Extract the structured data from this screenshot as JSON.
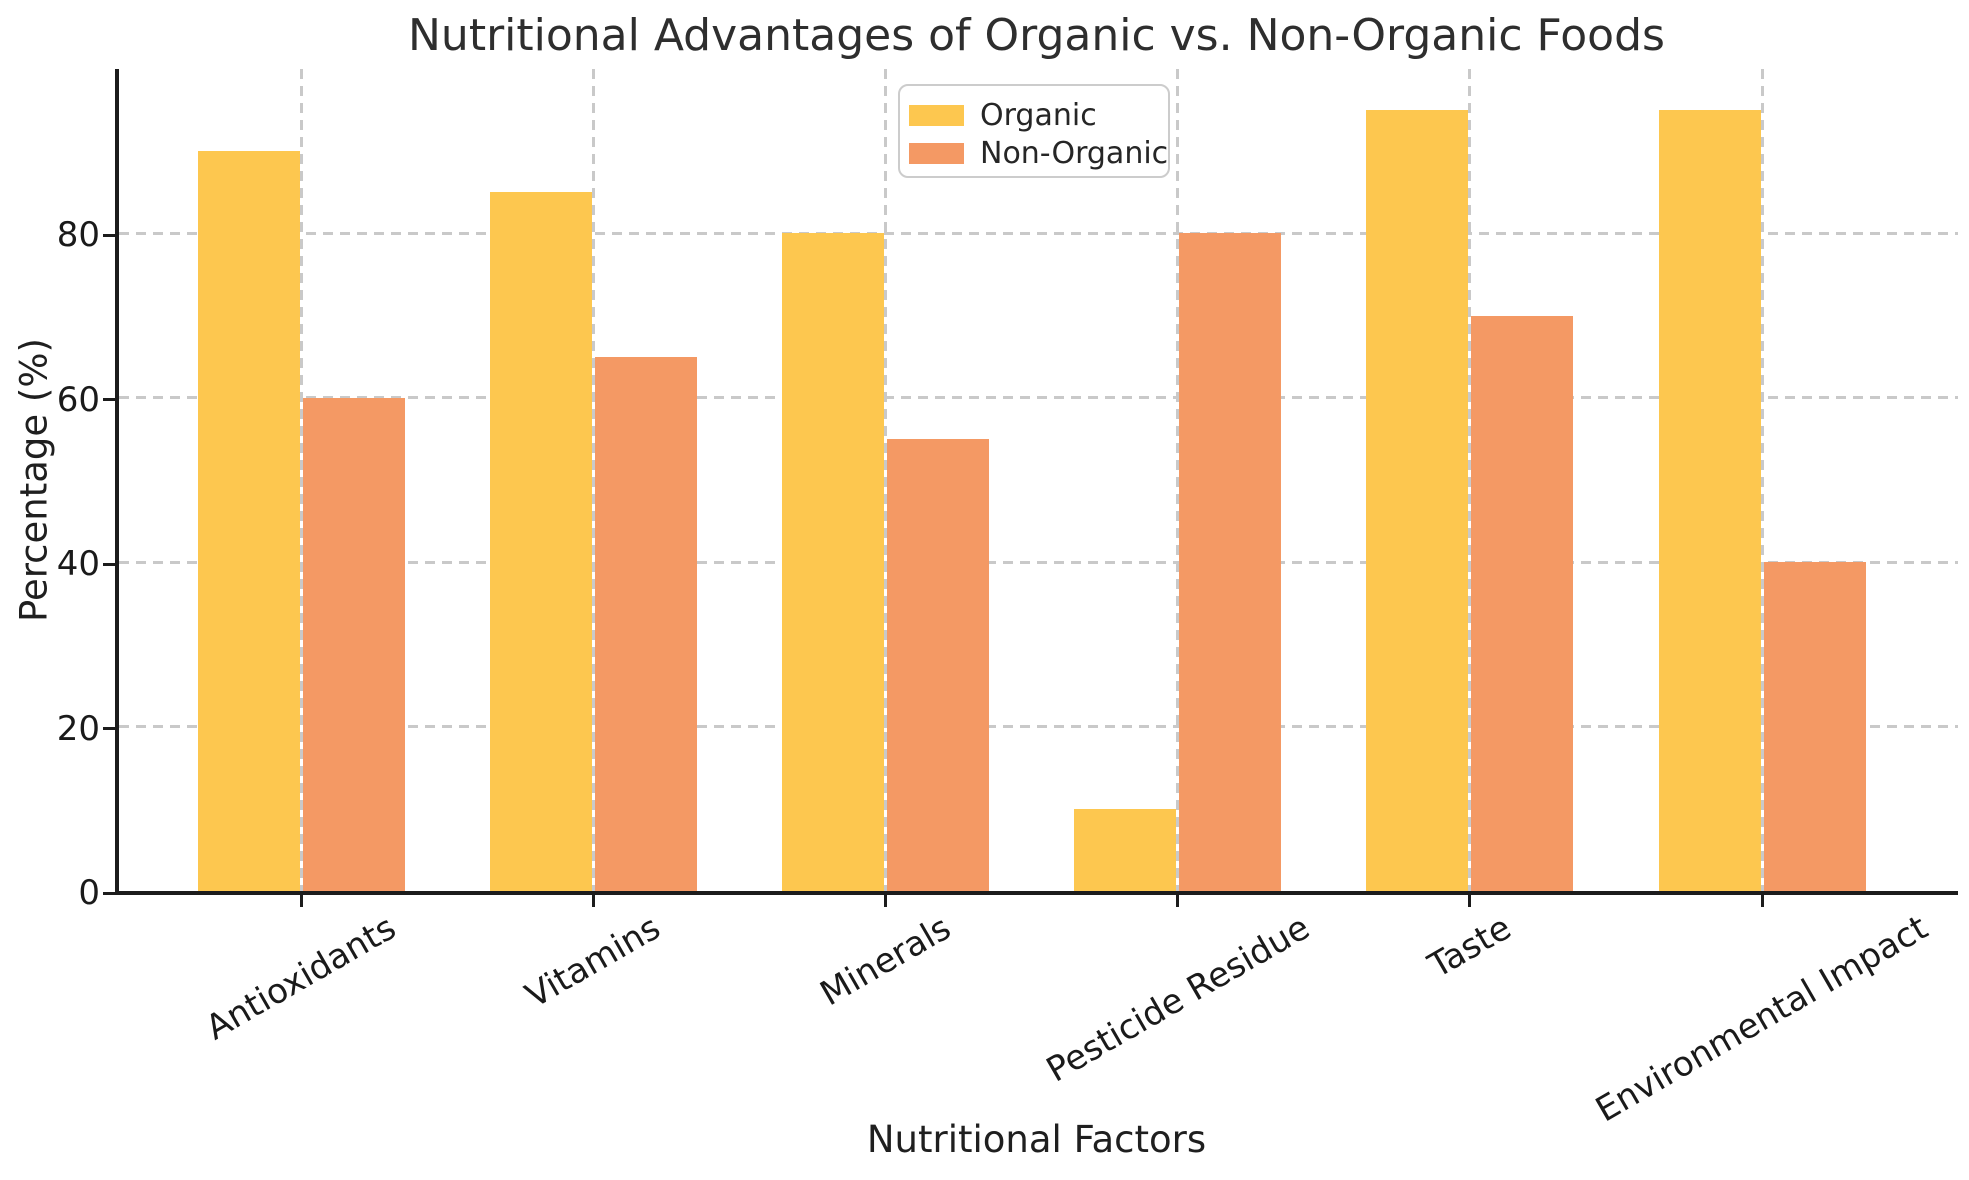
{
  "chart_data": {
    "type": "bar",
    "title": "Nutritional Advantages of Organic vs. Non-Organic Foods",
    "xlabel": "Nutritional Factors",
    "ylabel": "Percentage (%)",
    "categories": [
      "Antioxidants",
      "Vitamins",
      "Minerals",
      "Pesticide Residue",
      "Taste",
      "Environmental Impact"
    ],
    "series": [
      {
        "name": "Organic",
        "color": "#FDC74F",
        "values": [
          90,
          85,
          80,
          10,
          95,
          95
        ]
      },
      {
        "name": "Non-Organic",
        "color": "#F49964",
        "values": [
          60,
          65,
          55,
          80,
          70,
          40
        ]
      }
    ],
    "ylim": [
      0,
      100
    ],
    "yticks": [
      0,
      20,
      40,
      60,
      80
    ],
    "grid": {
      "style": "dashed",
      "axes": "both",
      "below_bars": true
    },
    "legend": {
      "position": "upper center"
    },
    "x_tick_rotation_deg": 30
  },
  "colors": {
    "background": "#FFFFFF",
    "text": "#1A1A1A",
    "title_text": "#2E2E2E",
    "grid": "#C9C9C9",
    "spine": "#1C1C1C",
    "legend_border": "#CCCCCC",
    "organic_bar": "#FDC74F",
    "non_organic_bar": "#F49964"
  }
}
